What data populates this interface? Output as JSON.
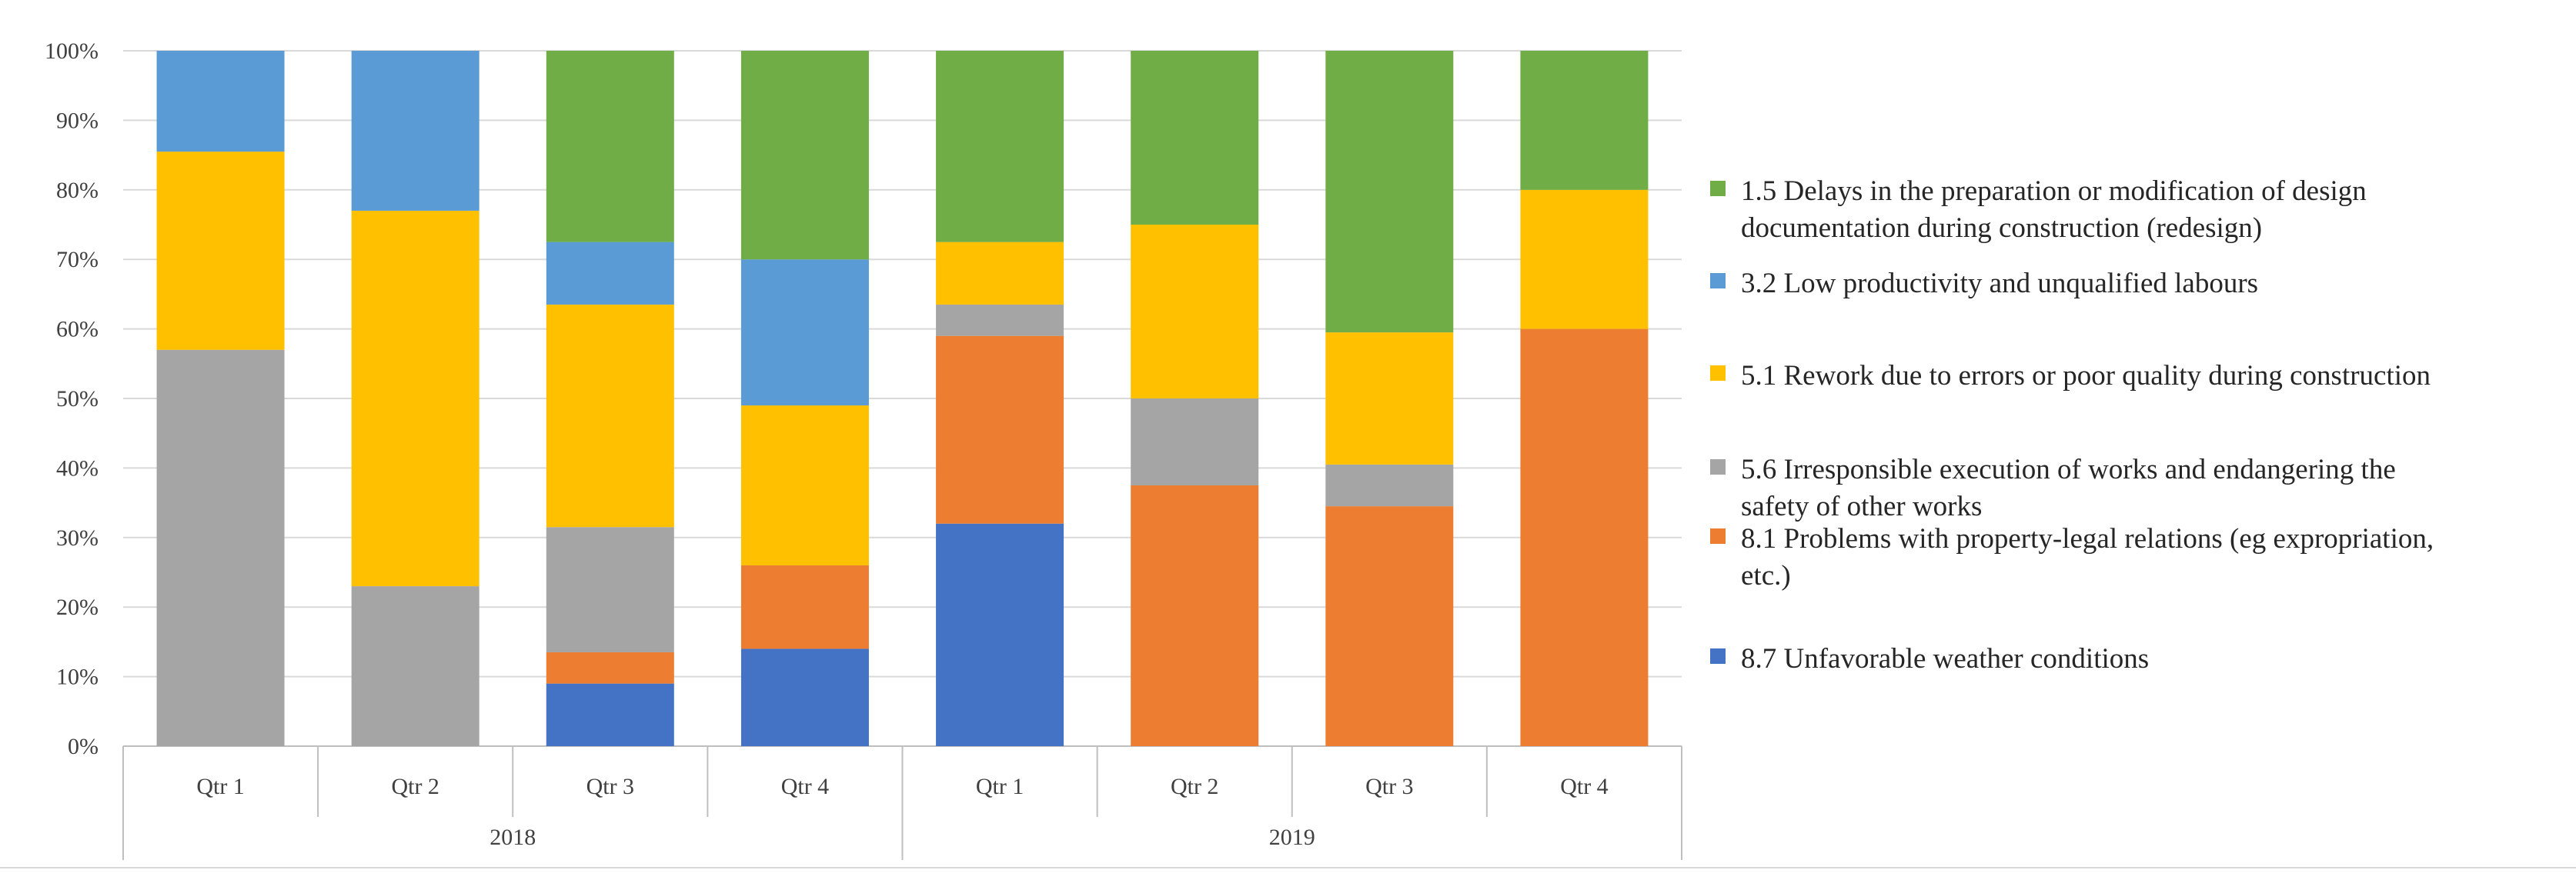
{
  "chart_data": {
    "type": "bar",
    "stacked": true,
    "percent_stacked": true,
    "title": "",
    "xlabel": "",
    "ylabel": "",
    "ylim": [
      0,
      100
    ],
    "y_ticks": [
      0,
      10,
      20,
      30,
      40,
      50,
      60,
      70,
      80,
      90,
      100
    ],
    "y_tick_suffix": "%",
    "grid": true,
    "legend_position": "right",
    "groups": [
      {
        "label": "2018",
        "categories": [
          "Qtr 1",
          "Qtr 2",
          "Qtr 3",
          "Qtr 4"
        ]
      },
      {
        "label": "2019",
        "categories": [
          "Qtr 1",
          "Qtr 2",
          "Qtr 3",
          "Qtr 4"
        ]
      }
    ],
    "categories": [
      "Qtr 1",
      "Qtr 2",
      "Qtr 3",
      "Qtr 4",
      "Qtr 1",
      "Qtr 2",
      "Qtr 3",
      "Qtr 4"
    ],
    "series": [
      {
        "name": "8.7 Unfavorable weather conditions",
        "color": "#4472C4",
        "values": [
          0,
          0,
          9,
          14,
          32,
          0,
          0,
          0
        ]
      },
      {
        "name": "8.1 Problems with property-legal relations (eg expropriation, etc.)",
        "color": "#ED7D31",
        "values": [
          0,
          0,
          4.5,
          12,
          27,
          37.5,
          34.5,
          60
        ]
      },
      {
        "name": "5.6 Irresponsible execution of works and endangering the safety of other works",
        "color": "#A5A5A5",
        "values": [
          57,
          23,
          18,
          0,
          4.5,
          12.5,
          6,
          0
        ]
      },
      {
        "name": "5.1 Rework due to errors or poor quality during construction",
        "color": "#FFC000",
        "values": [
          28.5,
          54,
          32,
          23,
          9,
          25,
          19,
          20
        ]
      },
      {
        "name": "3.2 Low productivity and unqualified labours",
        "color": "#5B9BD5",
        "values": [
          14.5,
          23,
          9,
          21,
          0,
          0,
          0,
          0
        ]
      },
      {
        "name": "1.5 Delays in the preparation or modification of design documentation during construction (redesign)",
        "color": "#70AD47",
        "values": [
          0,
          0,
          27.5,
          30,
          27.5,
          25,
          40.5,
          20
        ]
      }
    ],
    "legend": [
      {
        "lines": [
          "1.5 Delays in the preparation or modification of design",
          "documentation during construction (redesign)"
        ],
        "color": "#70AD47"
      },
      {
        "lines": [
          "3.2 Low productivity and unqualified labours"
        ],
        "color": "#5B9BD5"
      },
      {
        "lines": [
          "5.1 Rework due to errors or poor quality during construction"
        ],
        "color": "#FFC000"
      },
      {
        "lines": [
          "5.6 Irresponsible execution of works and endangering the",
          "safety of other works"
        ],
        "color": "#A5A5A5"
      },
      {
        "lines": [
          "8.1 Problems with property-legal relations (eg expropriation,",
          "etc.)"
        ],
        "color": "#ED7D31"
      },
      {
        "lines": [
          "8.7 Unfavorable weather conditions"
        ],
        "color": "#4472C4"
      }
    ]
  }
}
